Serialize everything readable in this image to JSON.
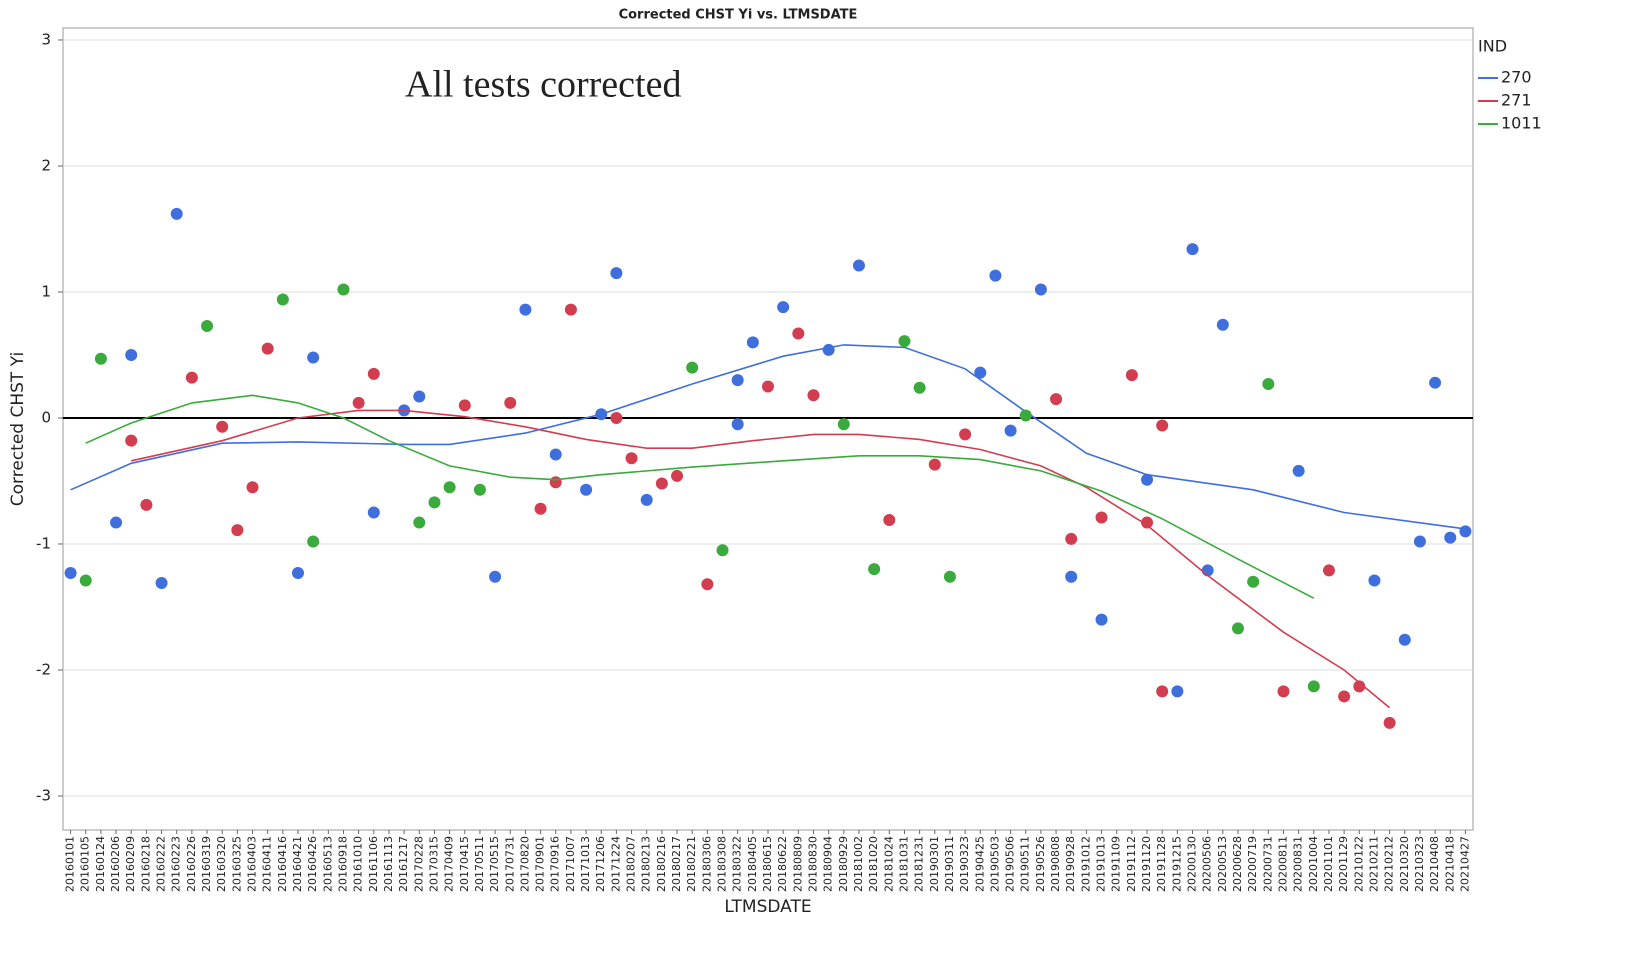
{
  "chart_data": {
    "type": "scatter",
    "title": "Corrected CHST Yi vs. LTMSDATE",
    "annotation": "All tests corrected",
    "x_label": "LTMSDATE",
    "y_label": "Corrected CHST Yi",
    "legend_title": "IND",
    "grid": true,
    "reference_line": 0,
    "ylim": [
      -3.27,
      3.095
    ],
    "yticks": [
      -3,
      -2,
      -1,
      0,
      1,
      2,
      3
    ],
    "categories": [
      "20160101",
      "20160105",
      "20160124",
      "20160206",
      "20160209",
      "20160218",
      "20160222",
      "20160223",
      "20160226",
      "20160319",
      "20160320",
      "20160325",
      "20160403",
      "20160411",
      "20160416",
      "20160421",
      "20160426",
      "20160513",
      "20160918",
      "20161010",
      "20161106",
      "20161113",
      "20161217",
      "20170228",
      "20170315",
      "20170409",
      "20170415",
      "20170511",
      "20170515",
      "20170731",
      "20170820",
      "20170901",
      "20170916",
      "20171007",
      "20171013",
      "20171206",
      "20171224",
      "20180207",
      "20180213",
      "20180216",
      "20180217",
      "20180221",
      "20180306",
      "20180308",
      "20180322",
      "20180405",
      "20180615",
      "20180622",
      "20180809",
      "20180830",
      "20180904",
      "20180929",
      "20181002",
      "20181020",
      "20181024",
      "20181031",
      "20181231",
      "20190301",
      "20190311",
      "20190323",
      "20190425",
      "20190503",
      "20190506",
      "20190511",
      "20190526",
      "20190808",
      "20190928",
      "20191012",
      "20191013",
      "20191109",
      "20191112",
      "20191120",
      "20191128",
      "20191215",
      "20200130",
      "20200506",
      "20200513",
      "20200628",
      "20200719",
      "20200731",
      "20200811",
      "20200831",
      "20201004",
      "20201101",
      "20201129",
      "20210122",
      "20210211",
      "20210212",
      "20210320",
      "20210323",
      "20210408",
      "20210418",
      "20210427"
    ],
    "series": [
      {
        "name": "270",
        "color": "#3f6fdc",
        "x": [
          "20160101",
          "20160206",
          "20160209",
          "20160222",
          "20160223",
          "20160421",
          "20160426",
          "20161106",
          "20161217",
          "20170228",
          "20170515",
          "20170820",
          "20170916",
          "20171013",
          "20171206",
          "20171224",
          "20180213",
          "20180322",
          "20180322",
          "20180405",
          "20180622",
          "20180904",
          "20181002",
          "20190425",
          "20190503",
          "20190506",
          "20190526",
          "20190928",
          "20191013",
          "20191120",
          "20191215",
          "20200130",
          "20200506",
          "20200513",
          "20200831",
          "20210211",
          "20210320",
          "20210323",
          "20210408",
          "20210418",
          "20210427"
        ],
        "values": [
          -1.23,
          -0.83,
          0.5,
          -1.31,
          1.62,
          -1.23,
          0.48,
          -0.75,
          0.06,
          0.17,
          -1.26,
          0.86,
          -0.29,
          -0.57,
          0.03,
          1.15,
          -0.65,
          0.3,
          -0.05,
          0.6,
          0.88,
          0.54,
          1.21,
          0.36,
          1.13,
          -0.1,
          1.02,
          -1.26,
          -1.6,
          -0.49,
          -2.17,
          1.34,
          -1.21,
          0.74,
          -0.42,
          -1.29,
          -1.76,
          -0.98,
          0.28,
          -0.95,
          -0.9
        ],
        "fit": {
          "x": [
            "20160101",
            "20160209",
            "20160320",
            "20160421",
            "20161217",
            "20170409",
            "20170820",
            "20171206",
            "20180221",
            "20180622",
            "20180929",
            "20181031",
            "20190323",
            "20190511",
            "20191012",
            "20191120",
            "20200719",
            "20201129",
            "20210427"
          ],
          "values": [
            -0.57,
            -0.36,
            -0.2,
            -0.19,
            -0.21,
            -0.21,
            -0.12,
            0.03,
            0.27,
            0.49,
            0.58,
            0.56,
            0.39,
            0.05,
            -0.28,
            -0.45,
            -0.57,
            -0.75,
            -0.88
          ]
        }
      },
      {
        "name": "271",
        "color": "#d23d4f",
        "x": [
          "20160209",
          "20160218",
          "20160226",
          "20160320",
          "20160325",
          "20160403",
          "20160411",
          "20161010",
          "20161106",
          "20170415",
          "20170731",
          "20170901",
          "20170916",
          "20171007",
          "20171224",
          "20180207",
          "20180216",
          "20180217",
          "20180306",
          "20180615",
          "20180809",
          "20180830",
          "20181024",
          "20190301",
          "20190323",
          "20190808",
          "20190928",
          "20191013",
          "20191112",
          "20191120",
          "20191128",
          "20191128",
          "20200811",
          "20201101",
          "20201129",
          "20210122",
          "20210212"
        ],
        "values": [
          -0.18,
          -0.69,
          0.32,
          -0.07,
          -0.89,
          -0.55,
          0.55,
          0.12,
          0.35,
          0.1,
          0.12,
          -0.72,
          -0.51,
          0.86,
          0.0,
          -0.32,
          -0.52,
          -0.46,
          -1.32,
          0.25,
          0.67,
          0.18,
          -0.81,
          -0.37,
          -0.13,
          0.15,
          -0.96,
          -0.79,
          0.34,
          -0.83,
          -2.17,
          -0.06,
          -2.17,
          -1.21,
          -2.21,
          -2.13,
          -2.42
        ],
        "fit": {
          "x": [
            "20160209",
            "20160320",
            "20160421",
            "20161010",
            "20161217",
            "20170415",
            "20170820",
            "20171013",
            "20180213",
            "20180221",
            "20180405",
            "20180830",
            "20181002",
            "20181231",
            "20190425",
            "20190526",
            "20191012",
            "20191120",
            "20200506",
            "20200811",
            "20201129",
            "20210212"
          ],
          "values": [
            -0.34,
            -0.18,
            0.0,
            0.06,
            0.06,
            0.01,
            -0.07,
            -0.17,
            -0.24,
            -0.24,
            -0.18,
            -0.13,
            -0.13,
            -0.17,
            -0.25,
            -0.38,
            -0.55,
            -0.85,
            -1.25,
            -1.7,
            -2.0,
            -2.3
          ]
        }
      },
      {
        "name": "1011",
        "color": "#3aaa3c",
        "x": [
          "20160105",
          "20160124",
          "20160319",
          "20160416",
          "20160426",
          "20160918",
          "20170228",
          "20170315",
          "20170409",
          "20170511",
          "20180221",
          "20180308",
          "20180929",
          "20181020",
          "20181031",
          "20181231",
          "20190311",
          "20190511",
          "20200628",
          "20200719",
          "20200731",
          "20201004"
        ],
        "values": [
          -1.29,
          0.47,
          0.73,
          0.94,
          -0.98,
          1.02,
          -0.83,
          -0.67,
          -0.55,
          -0.57,
          0.4,
          -1.05,
          -0.05,
          -1.2,
          0.61,
          0.24,
          -1.26,
          0.02,
          -1.67,
          -1.3,
          0.27,
          -2.13
        ],
        "fit": {
          "x": [
            "20160105",
            "20160209",
            "20160226",
            "20160403",
            "20160421",
            "20160918",
            "20161113",
            "20170409",
            "20170731",
            "20170916",
            "20171206",
            "20180221",
            "20180622",
            "20181002",
            "20181231",
            "20190425",
            "20190526",
            "20191013",
            "20191128",
            "20200628",
            "20201004"
          ],
          "values": [
            -0.2,
            -0.04,
            0.12,
            0.18,
            0.12,
            0.0,
            -0.18,
            -0.38,
            -0.47,
            -0.49,
            -0.45,
            -0.39,
            -0.34,
            -0.3,
            -0.3,
            -0.33,
            -0.42,
            -0.58,
            -0.8,
            -1.12,
            -1.43
          ]
        }
      }
    ]
  }
}
